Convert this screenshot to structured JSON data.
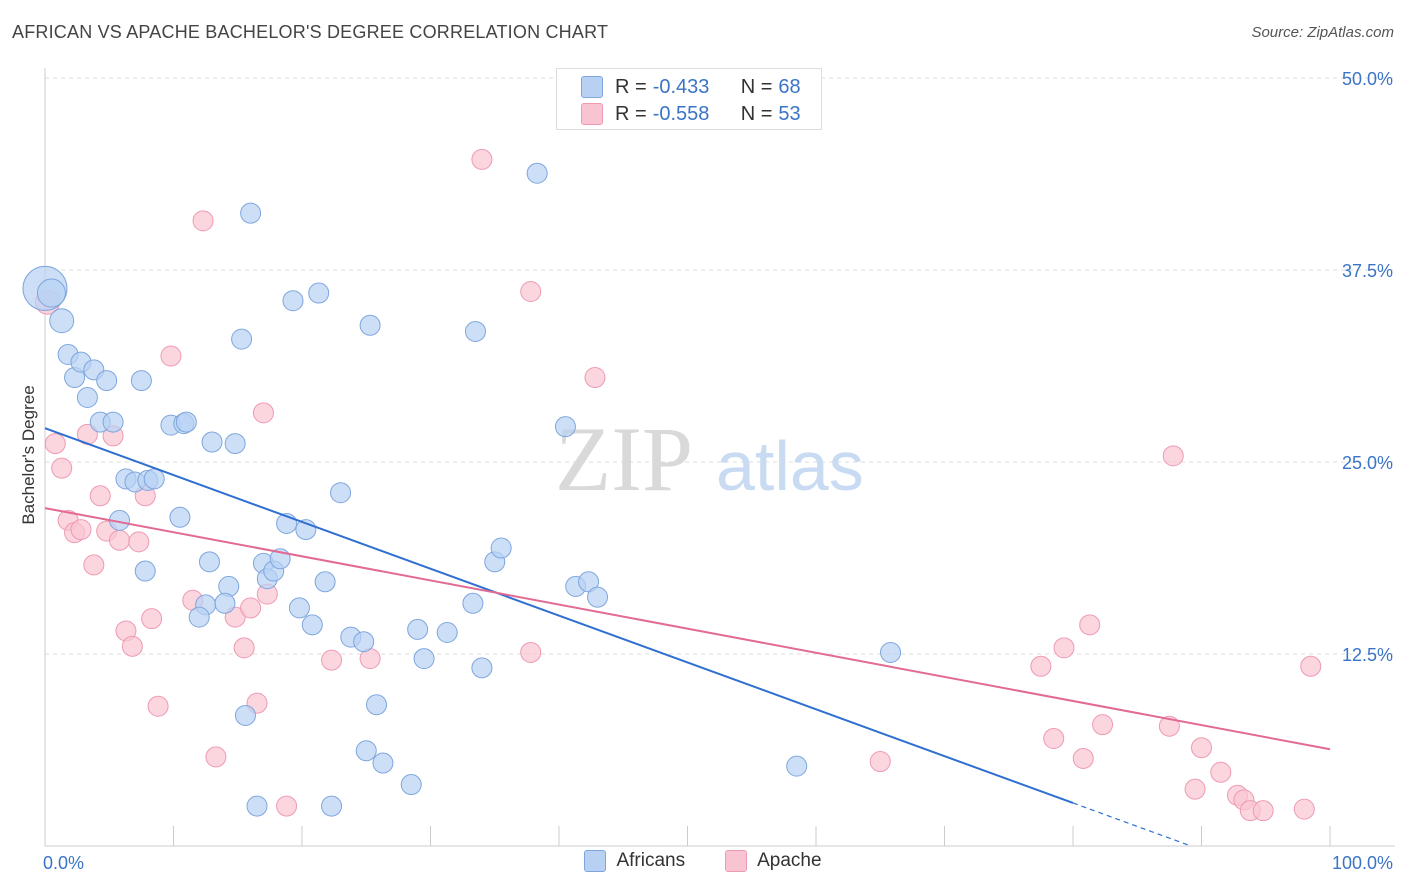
{
  "title": "AFRICAN VS APACHE BACHELOR'S DEGREE CORRELATION CHART",
  "source": "Source: ZipAtlas.com",
  "watermark": {
    "zip": "ZIP",
    "atlas": "atlas"
  },
  "legend": {
    "rows": [
      {
        "r_label": "R =",
        "r_value": "-0.433",
        "n_label": "N =",
        "n_value": "68"
      },
      {
        "r_label": "R =",
        "r_value": "-0.558",
        "n_label": "N =",
        "n_value": "53"
      }
    ]
  },
  "colors": {
    "africans_fill": "#b8d1f3",
    "africans_stroke": "#7ea6dd",
    "africans_line": "#2f6fd0",
    "apache_fill": "#f9c4d2",
    "apache_stroke": "#ee9ab3",
    "apache_line": "#e26a93",
    "grid": "#dddddd",
    "tick_label": "#3b74c6"
  },
  "chart_data": {
    "type": "scatter",
    "title": "AFRICAN VS APACHE BACHELOR'S DEGREE CORRELATION CHART",
    "ylabel": "Bachelor's Degree",
    "xlabel": "",
    "xlim": [
      0,
      100
    ],
    "ylim": [
      0,
      50
    ],
    "x_tick_labels": [
      "0.0%",
      "100.0%"
    ],
    "y_ticks": [
      12.5,
      25.0,
      37.5,
      50.0
    ],
    "y_tick_labels": [
      "12.5%",
      "25.0%",
      "37.5%",
      "50.0%"
    ],
    "grid": true,
    "legend_placement": "top-center",
    "series": [
      {
        "name": "Africans",
        "r": -0.433,
        "n": 68,
        "trend": {
          "x0": 0,
          "y0": 27.2,
          "x1": 80,
          "y1": 2.8,
          "dash_to_x": 89
        },
        "points": [
          [
            0,
            36.3,
            22
          ],
          [
            0.5,
            36.0,
            14
          ],
          [
            1.3,
            34.2,
            12
          ],
          [
            1.8,
            32.0,
            10
          ],
          [
            2.3,
            30.5,
            10
          ],
          [
            2.8,
            31.5,
            10
          ],
          [
            3.3,
            29.2,
            10
          ],
          [
            3.8,
            31.0,
            10
          ],
          [
            4.3,
            27.6,
            10
          ],
          [
            4.8,
            30.3,
            10
          ],
          [
            5.3,
            27.6,
            10
          ],
          [
            6.3,
            23.9,
            10
          ],
          [
            5.8,
            21.2,
            10
          ],
          [
            7.0,
            23.7,
            10
          ],
          [
            7.5,
            30.3,
            10
          ],
          [
            8.0,
            23.8,
            10
          ],
          [
            8.5,
            23.9,
            10
          ],
          [
            9.8,
            27.4,
            10
          ],
          [
            10.5,
            21.4,
            10
          ],
          [
            10.8,
            27.5,
            10
          ],
          [
            11.0,
            27.6,
            10
          ],
          [
            7.8,
            17.9,
            10
          ],
          [
            12.5,
            15.7,
            10
          ],
          [
            12.0,
            14.9,
            10
          ],
          [
            12.8,
            18.5,
            10
          ],
          [
            13.0,
            26.3,
            10
          ],
          [
            14.3,
            16.9,
            10
          ],
          [
            14.0,
            15.8,
            10
          ],
          [
            14.8,
            26.2,
            10
          ],
          [
            15.3,
            33.0,
            10
          ],
          [
            15.6,
            8.5,
            10
          ],
          [
            16.0,
            41.2,
            10
          ],
          [
            16.5,
            2.6,
            10
          ],
          [
            17.0,
            18.4,
            10
          ],
          [
            17.3,
            17.4,
            10
          ],
          [
            17.8,
            17.9,
            10
          ],
          [
            18.3,
            18.7,
            10
          ],
          [
            18.8,
            21.0,
            10
          ],
          [
            19.3,
            35.5,
            10
          ],
          [
            19.8,
            15.5,
            10
          ],
          [
            20.3,
            20.6,
            10
          ],
          [
            20.8,
            14.4,
            10
          ],
          [
            21.3,
            36.0,
            10
          ],
          [
            21.8,
            17.2,
            10
          ],
          [
            22.3,
            2.6,
            10
          ],
          [
            23.0,
            23.0,
            10
          ],
          [
            23.8,
            13.6,
            10
          ],
          [
            24.8,
            13.3,
            10
          ],
          [
            25.0,
            6.2,
            10
          ],
          [
            25.3,
            33.9,
            10
          ],
          [
            25.8,
            9.2,
            10
          ],
          [
            26.3,
            5.4,
            10
          ],
          [
            28.5,
            4.0,
            10
          ],
          [
            29.0,
            14.1,
            10
          ],
          [
            29.5,
            12.2,
            10
          ],
          [
            31.3,
            13.9,
            10
          ],
          [
            33.3,
            15.8,
            10
          ],
          [
            33.5,
            33.5,
            10
          ],
          [
            34.0,
            11.6,
            10
          ],
          [
            35.0,
            18.5,
            10
          ],
          [
            35.5,
            19.4,
            10
          ],
          [
            38.3,
            43.8,
            10
          ],
          [
            40.5,
            27.3,
            10
          ],
          [
            41.3,
            16.9,
            10
          ],
          [
            42.3,
            17.2,
            10
          ],
          [
            43.0,
            16.2,
            10
          ],
          [
            58.5,
            5.2,
            10
          ],
          [
            65.8,
            12.6,
            10
          ]
        ]
      },
      {
        "name": "Apache",
        "r": -0.558,
        "n": 53,
        "trend": {
          "x0": 0,
          "y0": 22.0,
          "x1": 100,
          "y1": 6.3
        },
        "points": [
          [
            0.2,
            35.4,
            12
          ],
          [
            0.8,
            26.2,
            10
          ],
          [
            1.3,
            24.6,
            10
          ],
          [
            1.8,
            21.2,
            10
          ],
          [
            2.3,
            20.4,
            10
          ],
          [
            2.8,
            20.6,
            10
          ],
          [
            3.3,
            26.8,
            10
          ],
          [
            3.8,
            18.3,
            10
          ],
          [
            4.3,
            22.8,
            10
          ],
          [
            4.8,
            20.5,
            10
          ],
          [
            5.3,
            26.7,
            10
          ],
          [
            5.8,
            19.9,
            10
          ],
          [
            6.3,
            14.0,
            10
          ],
          [
            6.8,
            13.0,
            10
          ],
          [
            7.3,
            19.8,
            10
          ],
          [
            7.8,
            22.8,
            10
          ],
          [
            8.3,
            14.8,
            10
          ],
          [
            8.8,
            9.1,
            10
          ],
          [
            9.8,
            31.9,
            10
          ],
          [
            11.5,
            16.0,
            10
          ],
          [
            12.3,
            40.7,
            10
          ],
          [
            13.3,
            5.8,
            10
          ],
          [
            14.8,
            14.9,
            10
          ],
          [
            15.5,
            12.9,
            10
          ],
          [
            16.0,
            15.5,
            10
          ],
          [
            16.5,
            9.3,
            10
          ],
          [
            17.0,
            28.2,
            10
          ],
          [
            17.3,
            16.4,
            10
          ],
          [
            18.8,
            2.6,
            10
          ],
          [
            22.3,
            12.1,
            10
          ],
          [
            25.3,
            12.2,
            10
          ],
          [
            34.0,
            44.7,
            10
          ],
          [
            37.8,
            36.1,
            10
          ],
          [
            37.8,
            12.6,
            10
          ],
          [
            42.8,
            30.5,
            10
          ],
          [
            65.0,
            5.5,
            10
          ],
          [
            77.5,
            11.7,
            10
          ],
          [
            78.5,
            7.0,
            10
          ],
          [
            79.3,
            12.9,
            10
          ],
          [
            80.8,
            5.7,
            10
          ],
          [
            81.3,
            14.4,
            10
          ],
          [
            82.3,
            7.9,
            10
          ],
          [
            87.8,
            25.4,
            10
          ],
          [
            87.5,
            7.8,
            10
          ],
          [
            89.5,
            3.7,
            10
          ],
          [
            90.0,
            6.4,
            10
          ],
          [
            91.5,
            4.8,
            10
          ],
          [
            92.8,
            3.3,
            10
          ],
          [
            93.3,
            3.0,
            10
          ],
          [
            93.8,
            2.3,
            10
          ],
          [
            94.8,
            2.3,
            10
          ],
          [
            98.0,
            2.4,
            10
          ],
          [
            98.5,
            11.7,
            10
          ]
        ]
      }
    ]
  },
  "bottom_legend": {
    "items": [
      {
        "label": "Africans"
      },
      {
        "label": "Apache"
      }
    ]
  }
}
